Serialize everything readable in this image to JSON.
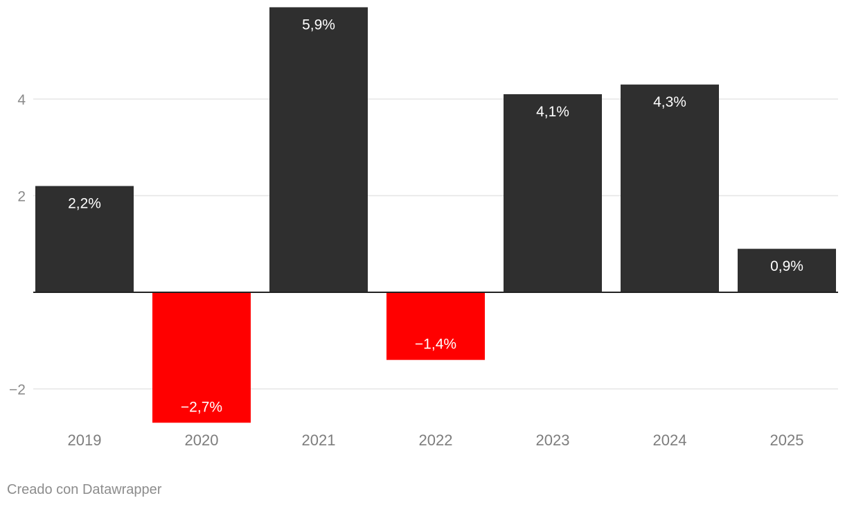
{
  "chart_data": {
    "type": "bar",
    "title": "",
    "xlabel": "",
    "ylabel": "",
    "categories": [
      "2019",
      "2020",
      "2021",
      "2022",
      "2023",
      "2024",
      "2025"
    ],
    "values": [
      2.2,
      -2.7,
      5.9,
      -1.4,
      4.1,
      4.3,
      0.9
    ],
    "value_labels": [
      "2,2%",
      "−2,7%",
      "5,9%",
      "−1,4%",
      "4,1%",
      "4,3%",
      "0,9%"
    ],
    "yticks": [
      {
        "value": 4,
        "label": "4"
      },
      {
        "value": 2,
        "label": "2"
      },
      {
        "value": -2,
        "label": "−2"
      }
    ],
    "ylim": [
      -2.7,
      5.9
    ],
    "grid": true,
    "colors": {
      "positive": "#2f2f2f",
      "negative": "#ff0000",
      "gridline": "#e5e5e5",
      "baseline": "#222222"
    }
  },
  "footer": {
    "credit": "Creado con Datawrapper"
  }
}
